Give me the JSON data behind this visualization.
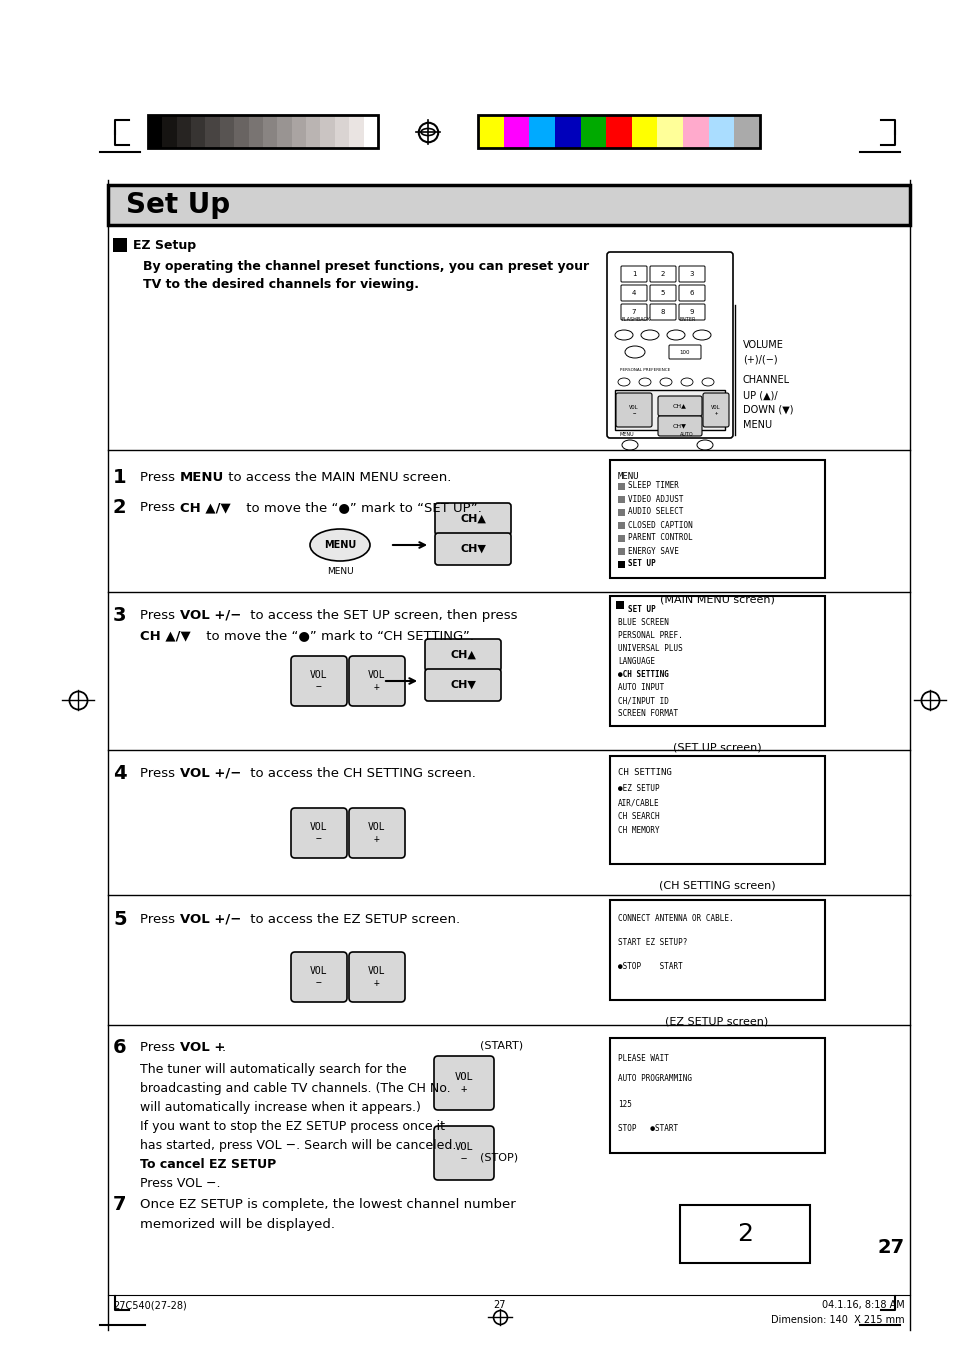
{
  "bg_color": "#ffffff",
  "lm": 0.115,
  "rm": 0.955,
  "gray_colors": [
    "#000000",
    "#161412",
    "#272422",
    "#373432",
    "#484442",
    "#585452",
    "#696462",
    "#797472",
    "#898482",
    "#999492",
    "#aaa4a2",
    "#bab4b2",
    "#cac4c2",
    "#dad4d2",
    "#eae4e2",
    "#ffffff"
  ],
  "color_colors": [
    "#ffff00",
    "#ff00ff",
    "#00aaff",
    "#0000bb",
    "#00aa00",
    "#ff0000",
    "#ffff00",
    "#ffff99",
    "#ffaacc",
    "#aaddff",
    "#aaaaaa"
  ],
  "title": "Set Up",
  "step1_bold": "MENU",
  "step1_rest": " to access the MAIN MENU screen.",
  "step2_bold": "CH ▲/▼",
  "step2_rest1": " to move the “",
  "step2_rest2": "●",
  "step2_rest3": "” mark to “SET UP”.",
  "menu_items": [
    "SLEEP TIMER",
    "VIDEO ADJUST",
    "AUDIO SELECT",
    "CLOSED CAPTION",
    "PARENT CONTROL",
    "ENERGY SAVE",
    "SET UP"
  ],
  "setup_items": [
    "BLUE SCREEN",
    "PERSONAL PREF.",
    "UNIVERSAL PLUS",
    "LANGUAGE",
    "●CH SETTING",
    "AUTO INPUT",
    "CH/INPUT ID",
    "SCREEN FORMAT"
  ],
  "ch_items": [
    "●EZ SETUP",
    "AIR/CABLE",
    "CH SEARCH",
    "CH MEMORY"
  ],
  "footer_left": "27C540(27-28)",
  "footer_mid": "27",
  "footer_right1": "04.1.16, 8:18 AM",
  "footer_right2": "Dimension: 140  X 215 mm"
}
